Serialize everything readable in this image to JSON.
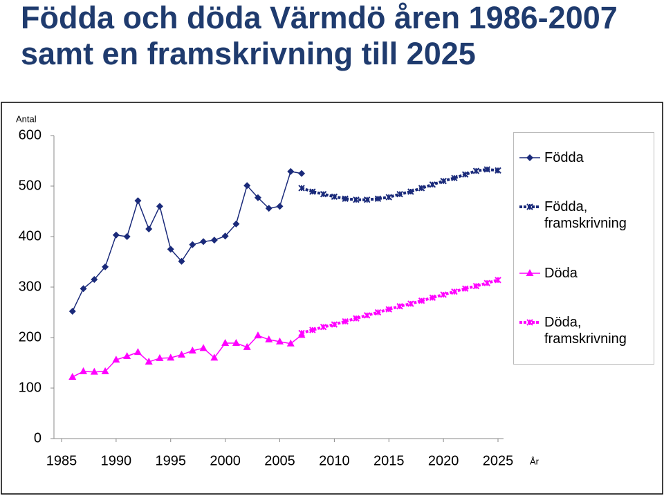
{
  "chart_data": {
    "type": "line",
    "title": "Födda och döda Värmdö åren 1986-2007 samt en framskrivning till 2025",
    "y_label": "Antal",
    "x_label": "År",
    "xlim": [
      1985,
      2025
    ],
    "xticks": [
      1985,
      1990,
      1995,
      2000,
      2005,
      2010,
      2015,
      2020,
      2025
    ],
    "ylim": [
      0,
      600
    ],
    "yticks": [
      0,
      100,
      200,
      300,
      400,
      500,
      600
    ],
    "legend": "right",
    "series": [
      {
        "name": "Födda",
        "color": "#1a2a7a",
        "marker": "diamond",
        "dashed": false,
        "x": [
          1986,
          1987,
          1988,
          1989,
          1990,
          1991,
          1992,
          1993,
          1994,
          1995,
          1996,
          1997,
          1998,
          1999,
          2000,
          2001,
          2002,
          2003,
          2004,
          2005,
          2006,
          2007
        ],
        "values": [
          252,
          297,
          315,
          340,
          403,
          400,
          471,
          415,
          460,
          375,
          351,
          384,
          390,
          393,
          401,
          425,
          501,
          477,
          456,
          460,
          529,
          525
        ]
      },
      {
        "name": "Födda, framskrivning",
        "color": "#1a2a7a",
        "marker": "star",
        "dashed": true,
        "x": [
          2007,
          2008,
          2009,
          2010,
          2011,
          2012,
          2013,
          2014,
          2015,
          2016,
          2017,
          2018,
          2019,
          2020,
          2021,
          2022,
          2023,
          2024,
          2025
        ],
        "values": [
          496,
          489,
          484,
          479,
          475,
          473,
          473,
          475,
          478,
          484,
          489,
          496,
          503,
          510,
          516,
          523,
          530,
          533,
          531
        ]
      },
      {
        "name": "Döda",
        "color": "#ff00ff",
        "marker": "triangle",
        "dashed": false,
        "x": [
          1986,
          1987,
          1988,
          1989,
          1990,
          1991,
          1992,
          1993,
          1994,
          1995,
          1996,
          1997,
          1998,
          1999,
          2000,
          2001,
          2002,
          2003,
          2004,
          2005,
          2006,
          2007
        ],
        "values": [
          122,
          133,
          132,
          133,
          156,
          163,
          171,
          152,
          159,
          160,
          166,
          174,
          179,
          160,
          189,
          189,
          181,
          204,
          196,
          192,
          188,
          205
        ]
      },
      {
        "name": "Döda, framskrivning",
        "color": "#ff00ff",
        "marker": "star",
        "dashed": true,
        "x": [
          2007,
          2008,
          2009,
          2010,
          2011,
          2012,
          2013,
          2014,
          2015,
          2016,
          2017,
          2018,
          2019,
          2020,
          2021,
          2022,
          2023,
          2024,
          2025
        ],
        "values": [
          209,
          215,
          221,
          226,
          232,
          238,
          244,
          250,
          256,
          262,
          267,
          273,
          279,
          285,
          291,
          297,
          302,
          308,
          314
        ]
      }
    ]
  }
}
